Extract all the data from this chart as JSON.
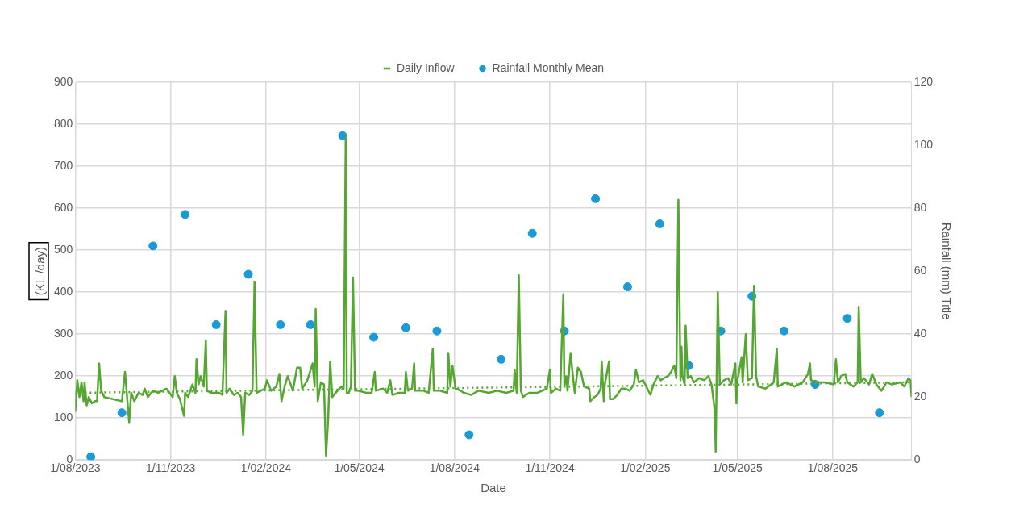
{
  "chart_data": {
    "type": "line",
    "xlabel": "Date",
    "ylabel": "(KL /day)",
    "y2label": "Rainfall (mm) Title",
    "xlim": [
      "2023-08-01",
      "2025-10-16"
    ],
    "xticks": [
      {
        "value": "2023-08-01",
        "label": "1/08/2023"
      },
      {
        "value": "2023-11-01",
        "label": "1/11/2023"
      },
      {
        "value": "2024-02-01",
        "label": "1/02/2024"
      },
      {
        "value": "2024-05-01",
        "label": "1/05/2024"
      },
      {
        "value": "2024-08-01",
        "label": "1/08/2024"
      },
      {
        "value": "2024-11-01",
        "label": "1/11/2024"
      },
      {
        "value": "2025-02-01",
        "label": "1/02/2025"
      },
      {
        "value": "2025-05-01",
        "label": "1/05/2025"
      },
      {
        "value": "2025-08-01",
        "label": "1/08/2025"
      }
    ],
    "ylim": [
      0,
      900
    ],
    "yticks": [
      0,
      100,
      200,
      300,
      400,
      500,
      600,
      700,
      800,
      900
    ],
    "y2lim": [
      0,
      120
    ],
    "y2ticks": [
      0,
      20,
      40,
      60,
      80,
      100,
      120
    ],
    "grid": true,
    "legend": "top",
    "series": [
      {
        "name": "Daily Inflow",
        "type": "line",
        "color": "#56a632",
        "marker": "none",
        "line_style": "solid",
        "x": [
          "2023-08-01",
          "2023-08-03",
          "2023-08-05",
          "2023-08-07",
          "2023-08-09",
          "2023-08-10",
          "2023-08-12",
          "2023-08-14",
          "2023-08-17",
          "2023-08-20",
          "2023-08-22",
          "2023-08-24",
          "2023-08-26",
          "2023-08-29",
          "2023-09-15",
          "2023-09-18",
          "2023-09-20",
          "2023-09-22",
          "2023-09-24",
          "2023-09-27",
          "2023-10-01",
          "2023-10-05",
          "2023-10-07",
          "2023-10-10",
          "2023-10-15",
          "2023-10-20",
          "2023-10-28",
          "2023-11-03",
          "2023-11-05",
          "2023-11-07",
          "2023-11-10",
          "2023-11-14",
          "2023-11-15",
          "2023-11-18",
          "2023-11-22",
          "2023-11-25",
          "2023-11-26",
          "2023-11-28",
          "2023-11-30",
          "2023-12-03",
          "2023-12-05",
          "2023-12-06",
          "2023-12-10",
          "2023-12-18",
          "2023-12-21",
          "2023-12-24",
          "2023-12-25",
          "2023-12-28",
          "2024-01-01",
          "2024-01-05",
          "2024-01-08",
          "2024-01-10",
          "2024-01-12",
          "2024-01-16",
          "2024-01-19",
          "2024-01-21",
          "2024-01-23",
          "2024-01-27",
          "2024-01-31",
          "2024-02-02",
          "2024-02-06",
          "2024-02-11",
          "2024-02-14",
          "2024-02-16",
          "2024-02-19",
          "2024-02-22",
          "2024-02-27",
          "2024-03-02",
          "2024-03-05",
          "2024-03-07",
          "2024-03-12",
          "2024-03-17",
          "2024-03-19",
          "2024-03-20",
          "2024-03-22",
          "2024-03-25",
          "2024-03-28",
          "2024-03-30",
          "2024-04-01",
          "2024-04-03",
          "2024-04-05",
          "2024-04-10",
          "2024-04-14",
          "2024-04-16",
          "2024-04-18",
          "2024-04-19",
          "2024-04-21",
          "2024-04-23",
          "2024-04-25",
          "2024-04-27",
          "2024-04-30",
          "2024-05-08",
          "2024-05-13",
          "2024-05-16",
          "2024-05-17",
          "2024-05-24",
          "2024-05-28",
          "2024-05-31",
          "2024-06-02",
          "2024-06-08",
          "2024-06-14",
          "2024-06-15",
          "2024-06-17",
          "2024-06-21",
          "2024-06-23",
          "2024-06-24",
          "2024-07-02",
          "2024-07-07",
          "2024-07-11",
          "2024-07-12",
          "2024-07-18",
          "2024-07-25",
          "2024-07-26",
          "2024-07-28",
          "2024-07-30",
          "2024-08-02",
          "2024-08-07",
          "2024-08-10",
          "2024-08-17",
          "2024-08-24",
          "2024-09-03",
          "2024-09-11",
          "2024-09-20",
          "2024-09-27",
          "2024-09-28",
          "2024-09-30",
          "2024-10-02",
          "2024-10-04",
          "2024-10-06",
          "2024-10-12",
          "2024-10-20",
          "2024-10-29",
          "2024-11-01",
          "2024-11-02",
          "2024-11-07",
          "2024-11-11",
          "2024-11-14",
          "2024-11-15",
          "2024-11-17",
          "2024-11-18",
          "2024-11-21",
          "2024-11-23",
          "2024-11-25",
          "2024-11-28",
          "2024-12-01",
          "2024-12-04",
          "2024-12-09",
          "2024-12-10",
          "2024-12-14",
          "2024-12-17",
          "2024-12-20",
          "2024-12-21",
          "2024-12-23",
          "2024-12-24",
          "2024-12-28",
          "2024-12-29",
          "2025-01-01",
          "2025-01-05",
          "2025-01-09",
          "2025-01-13",
          "2025-01-17",
          "2025-01-21",
          "2025-01-23",
          "2025-01-26",
          "2025-01-30",
          "2025-02-03",
          "2025-02-06",
          "2025-02-09",
          "2025-02-13",
          "2025-02-16",
          "2025-02-19",
          "2025-02-23",
          "2025-02-26",
          "2025-03-01",
          "2025-03-03",
          "2025-03-05",
          "2025-03-07",
          "2025-03-08",
          "2025-03-09",
          "2025-03-11",
          "2025-03-12",
          "2025-03-14",
          "2025-03-17",
          "2025-03-20",
          "2025-03-25",
          "2025-03-30",
          "2025-04-03",
          "2025-04-06",
          "2025-04-09",
          "2025-04-10",
          "2025-04-12",
          "2025-04-14",
          "2025-04-18",
          "2025-04-22",
          "2025-04-25",
          "2025-04-29",
          "2025-04-30",
          "2025-05-01",
          "2025-05-05",
          "2025-05-06",
          "2025-05-09",
          "2025-05-11",
          "2025-05-15",
          "2025-05-17",
          "2025-05-19",
          "2025-05-21",
          "2025-05-28",
          "2025-06-05",
          "2025-06-08",
          "2025-06-09",
          "2025-06-17",
          "2025-06-25",
          "2025-07-03",
          "2025-07-08",
          "2025-07-10",
          "2025-07-11",
          "2025-07-19",
          "2025-07-24",
          "2025-08-02",
          "2025-08-04",
          "2025-08-06",
          "2025-08-09",
          "2025-08-13",
          "2025-08-15",
          "2025-08-21",
          "2025-08-25",
          "2025-08-26",
          "2025-08-28",
          "2025-08-31",
          "2025-09-05",
          "2025-09-08",
          "2025-09-12",
          "2025-09-17",
          "2025-09-22",
          "2025-09-27",
          "2025-10-05",
          "2025-10-09",
          "2025-10-13",
          "2025-10-15",
          "2025-10-16"
        ],
        "values": [
          115,
          190,
          150,
          185,
          140,
          185,
          130,
          150,
          135,
          140,
          140,
          230,
          165,
          150,
          140,
          210,
          150,
          90,
          160,
          140,
          160,
          155,
          170,
          150,
          165,
          160,
          170,
          150,
          200,
          160,
          145,
          105,
          160,
          150,
          180,
          160,
          240,
          180,
          200,
          175,
          285,
          165,
          160,
          160,
          155,
          355,
          160,
          170,
          155,
          160,
          150,
          60,
          160,
          155,
          165,
          425,
          160,
          165,
          170,
          190,
          165,
          175,
          205,
          140,
          175,
          200,
          165,
          220,
          220,
          170,
          190,
          230,
          175,
          360,
          140,
          185,
          180,
          10,
          95,
          235,
          150,
          165,
          175,
          170,
          770,
          160,
          160,
          175,
          435,
          165,
          165,
          160,
          160,
          210,
          165,
          170,
          160,
          190,
          155,
          160,
          160,
          210,
          165,
          170,
          230,
          165,
          165,
          160,
          265,
          165,
          165,
          160,
          255,
          175,
          225,
          170,
          165,
          160,
          155,
          165,
          160,
          165,
          160,
          165,
          215,
          160,
          440,
          165,
          150,
          160,
          160,
          170,
          215,
          160,
          170,
          165,
          395,
          175,
          200,
          165,
          255,
          205,
          160,
          220,
          210,
          175,
          170,
          140,
          150,
          155,
          170,
          235,
          140,
          180,
          235,
          145,
          145,
          155,
          170,
          170,
          165,
          180,
          215,
          185,
          190,
          170,
          155,
          180,
          200,
          190,
          195,
          200,
          210,
          225,
          195,
          620,
          190,
          270,
          200,
          180,
          320,
          195,
          200,
          185,
          195,
          190,
          200,
          180,
          120,
          20,
          400,
          180,
          190,
          195,
          180,
          230,
          135,
          190,
          245,
          185,
          300,
          190,
          195,
          415,
          200,
          175,
          170,
          185,
          265,
          175,
          185,
          175,
          185,
          205,
          230,
          190,
          185,
          185,
          180,
          240,
          185,
          200,
          205,
          185,
          175,
          185,
          365,
          185,
          195,
          180,
          205,
          180,
          165,
          185,
          180,
          185,
          175,
          195,
          190,
          150
        ]
      },
      {
        "type": "line",
        "color": "#56a632",
        "marker": "none",
        "line_style": "dotted",
        "x": [
          "2023-08-01",
          "2025-10-16"
        ],
        "values": [
          160,
          185
        ]
      },
      {
        "name": "Rainfall Monthly Mean",
        "type": "scatter",
        "axis": "y2",
        "color": "#1a9ad6",
        "marker": "circle",
        "x": [
          "2023-08-16",
          "2023-09-15",
          "2023-10-15",
          "2023-11-15",
          "2023-12-15",
          "2024-01-15",
          "2024-02-15",
          "2024-03-15",
          "2024-04-15",
          "2024-05-15",
          "2024-06-15",
          "2024-07-15",
          "2024-08-15",
          "2024-09-15",
          "2024-10-15",
          "2024-11-15",
          "2024-12-15",
          "2025-01-15",
          "2025-02-15",
          "2025-03-15",
          "2025-04-15",
          "2025-05-15",
          "2025-06-15",
          "2025-07-15",
          "2025-08-15",
          "2025-09-15"
        ],
        "values": [
          1,
          15,
          68,
          78,
          43,
          59,
          43,
          43,
          103,
          39,
          42,
          41,
          8,
          32,
          72,
          41,
          83,
          55,
          75,
          30,
          41,
          52,
          41,
          24,
          45,
          15
        ]
      }
    ]
  }
}
